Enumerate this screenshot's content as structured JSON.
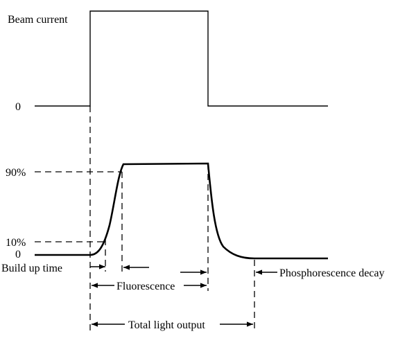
{
  "labels": {
    "beam_current": "Beam current",
    "zero_top": "0",
    "ninety": "90%",
    "ten": "10%",
    "zero_bottom": "0",
    "build_up_time": "Build up time",
    "fluorescence": "Fluorescence",
    "phosphorescence_decay": "Phosphorescence decay",
    "total_light_output": "Total light output"
  }
}
